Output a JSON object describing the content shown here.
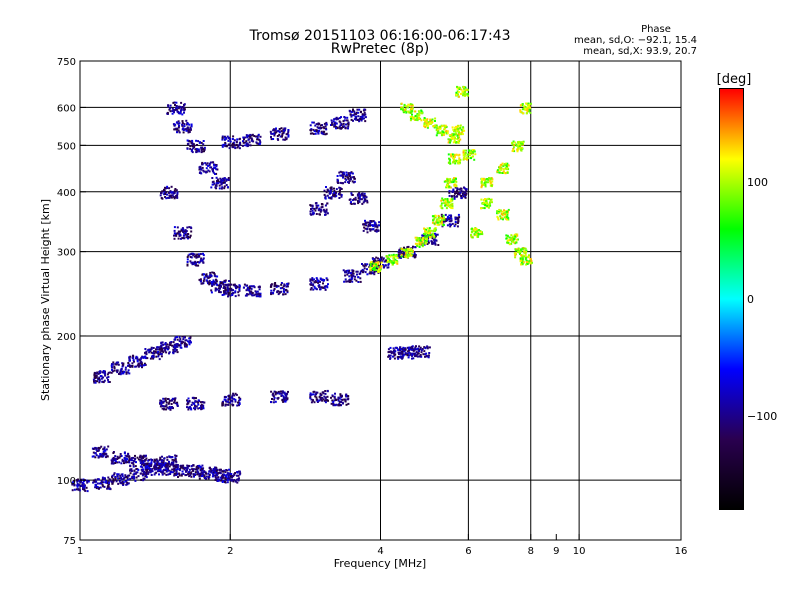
{
  "chart_data": {
    "type": "scatter",
    "title": "Tromsø 20151103 06:16:00-06:17:43",
    "subtitle": "RwPretec (8p)",
    "xlabel": "Frequency [MHz]",
    "ylabel": "Stationary phase Virtual Height [km]",
    "x_scale": "log",
    "y_scale": "log",
    "xlim": [
      1,
      16
    ],
    "ylim": [
      75,
      750
    ],
    "x_ticks": [
      1,
      2,
      4,
      6,
      8,
      9,
      10,
      16
    ],
    "x_tick_labels": [
      "1",
      "2",
      "4",
      "6",
      "8",
      "9",
      "10",
      "16"
    ],
    "x_gridlines": [
      2,
      4,
      6,
      8,
      10
    ],
    "y_ticks": [
      75,
      100,
      200,
      300,
      400,
      500,
      600,
      750
    ],
    "y_tick_labels": [
      "75",
      "100",
      "200",
      "300",
      "400",
      "500",
      "600",
      "750"
    ],
    "y_gridlines": [
      100,
      200,
      300,
      400,
      500,
      600
    ],
    "grid": true,
    "stats": {
      "heading": "Phase",
      "line1": "mean, sd,O: −92.1, 15.4",
      "line2": "mean, sd,X:  93.9, 20.7"
    },
    "colorbar": {
      "label": "[deg]",
      "range": [
        -180,
        180
      ],
      "ticks": [
        100,
        0,
        -100
      ],
      "tick_labels": [
        "100",
        "0",
        "−100"
      ],
      "colormap": "rainbow",
      "colors": [
        "#000000",
        "#2a0050",
        "#0000ff",
        "#00ffff",
        "#00ff00",
        "#ffff00",
        "#ff0000"
      ]
    },
    "traces": [
      {
        "polarity": "O",
        "phase": -100,
        "x": [
          1.0,
          1.1,
          1.2,
          1.3,
          1.4,
          1.5
        ],
        "y": [
          98,
          99,
          101,
          103,
          106,
          110
        ]
      },
      {
        "polarity": "O",
        "phase": -100,
        "x": [
          1.1,
          1.2,
          1.3,
          1.4,
          1.5,
          1.6,
          1.7,
          1.8,
          1.9,
          2.0
        ],
        "y": [
          115,
          112,
          110,
          108,
          106,
          105,
          105,
          104,
          103,
          102
        ]
      },
      {
        "polarity": "O",
        "phase": -100,
        "x": [
          1.1,
          1.2,
          1.3,
          1.4,
          1.5,
          1.6
        ],
        "y": [
          165,
          172,
          178,
          185,
          190,
          195
        ]
      },
      {
        "polarity": "O",
        "phase": -100,
        "x": [
          1.5,
          1.6,
          1.7,
          1.8,
          1.9,
          2.0,
          2.2,
          2.5,
          3.0,
          3.5,
          3.8,
          4.0,
          4.5,
          5.0,
          5.5,
          5.7
        ],
        "y": [
          400,
          330,
          290,
          265,
          255,
          250,
          250,
          252,
          258,
          268,
          278,
          285,
          300,
          320,
          350,
          400
        ]
      },
      {
        "polarity": "O",
        "phase": -100,
        "x": [
          1.55,
          1.6,
          1.7,
          1.8,
          1.9
        ],
        "y": [
          600,
          550,
          500,
          450,
          420
        ]
      },
      {
        "polarity": "O",
        "phase": -100,
        "x": [
          2.0,
          2.2,
          2.5,
          3.0,
          3.3,
          3.6
        ],
        "y": [
          510,
          515,
          530,
          545,
          560,
          580
        ]
      },
      {
        "polarity": "O",
        "phase": -100,
        "x": [
          3.0,
          3.2,
          3.4,
          3.6,
          3.8
        ],
        "y": [
          370,
          400,
          430,
          390,
          340
        ]
      },
      {
        "polarity": "O",
        "phase": -100,
        "x": [
          1.5,
          1.7,
          2.0,
          2.5,
          3.0,
          3.3
        ],
        "y": [
          145,
          145,
          148,
          150,
          150,
          148
        ]
      },
      {
        "polarity": "O",
        "phase": -100,
        "x": [
          4.3,
          4.5,
          4.8
        ],
        "y": [
          185,
          185,
          186
        ]
      },
      {
        "polarity": "X",
        "phase": 100,
        "x": [
          3.9,
          4.2,
          4.5,
          4.8,
          5.0,
          5.2,
          5.4,
          5.5,
          5.6,
          5.7,
          5.8
        ],
        "y": [
          280,
          290,
          300,
          315,
          330,
          350,
          380,
          420,
          470,
          540,
          650
        ]
      },
      {
        "polarity": "X",
        "phase": 100,
        "x": [
          4.5,
          4.7,
          5.0,
          5.3,
          5.6,
          6.0,
          6.5,
          7.0,
          7.3,
          7.6,
          7.8
        ],
        "y": [
          600,
          580,
          560,
          540,
          520,
          480,
          420,
          360,
          320,
          300,
          290
        ]
      },
      {
        "polarity": "X",
        "phase": 100,
        "x": [
          6.2,
          6.5,
          7.0,
          7.5,
          7.8
        ],
        "y": [
          330,
          380,
          450,
          500,
          600
        ]
      }
    ]
  }
}
